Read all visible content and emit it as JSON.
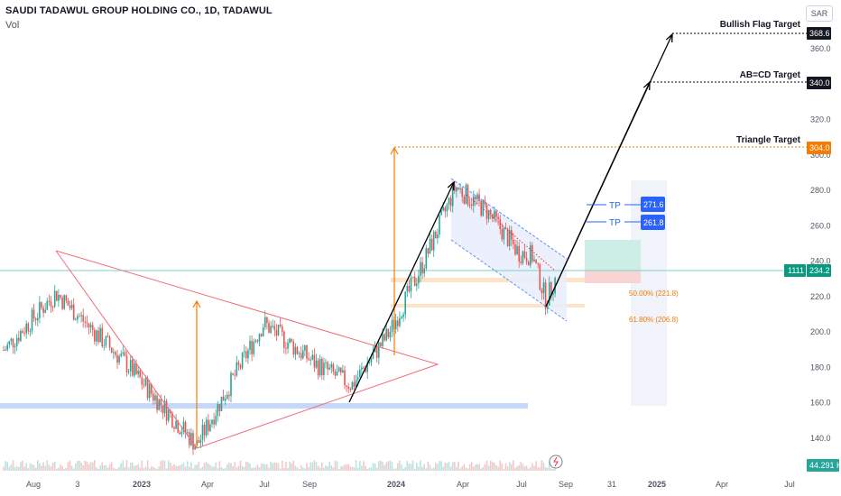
{
  "header": {
    "symbol": "SAUDI TADAWUL GROUP HOLDING CO., 1D, TADAWUL",
    "volume_label": "Vol",
    "currency": "SAR"
  },
  "chart_data": {
    "type": "candlestick",
    "y_axis_ticks": [
      140.0,
      160.0,
      180.0,
      200.0,
      220.0,
      240.0,
      260.0,
      280.0,
      300.0,
      320.0,
      340.0,
      360.0
    ],
    "x_axis_ticks": [
      "Aug",
      "3",
      "2023",
      "Apr",
      "Jul",
      "Sep",
      "2024",
      "Apr",
      "Jul",
      "Sep",
      "31",
      "2025",
      "Apr",
      "Jul"
    ],
    "approx_close_path": [
      [
        "Aug",
        190
      ],
      [
        "3",
        222
      ],
      [
        "2023",
        182
      ],
      [
        "Apr",
        136
      ],
      [
        "Jul",
        205
      ],
      [
        "Sep",
        182
      ],
      [
        "Nov",
        170
      ],
      [
        "2024",
        200
      ],
      [
        "Feb",
        240
      ],
      [
        "Mar",
        282
      ],
      [
        "Apr",
        268
      ],
      [
        "Jun",
        245
      ],
      [
        "Jul",
        243
      ],
      [
        "Aug",
        218
      ],
      [
        "Sep",
        232
      ]
    ],
    "price_labels": {
      "bullish_flag": "368.6",
      "abcd": "340.0",
      "triangle": "304.0",
      "tp1": "271.6",
      "tp2": "261.8",
      "current_price": "234.2",
      "symbol_code": "1111",
      "volume": "44.291 K"
    },
    "annotations": {
      "bullish_flag_target": "Bullish Flag Target",
      "abcd_target": "AB=CD Target",
      "triangle_target": "Triangle Target",
      "tp": "TP",
      "fib_50": "50.00% (221.8)",
      "fib_618": "61.80% (206.8)"
    },
    "colors": {
      "up": "#26a69a",
      "down": "#ef5350",
      "triangle": "#f23645",
      "support": "#2962ff",
      "orange": "#f57c00",
      "black": "#000000"
    }
  }
}
